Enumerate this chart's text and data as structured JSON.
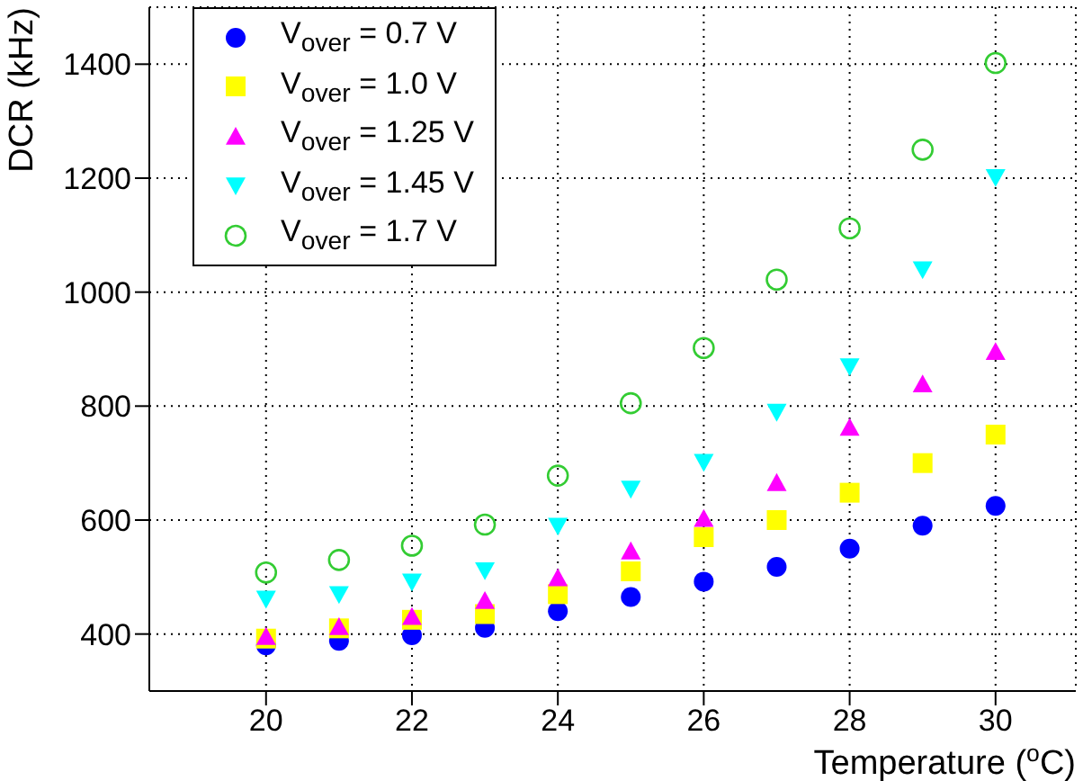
{
  "chart_data": {
    "type": "scatter",
    "xlabel": "Temperature ($^{o}$C)",
    "ylabel": "DCR (kHz)",
    "x": [
      20,
      21,
      22,
      23,
      24,
      25,
      26,
      27,
      28,
      29,
      30
    ],
    "series": [
      {
        "name": "V$_{over}$ = 0.7 V",
        "color": "#0000ff",
        "marker": "circle",
        "values": [
          380,
          388,
          398,
          411,
          440,
          465,
          492,
          518,
          550,
          590,
          625
        ]
      },
      {
        "name": "V$_{over}$ = 1.0 V",
        "color": "#ffff00",
        "marker": "square",
        "values": [
          392,
          410,
          425,
          435,
          470,
          510,
          570,
          600,
          648,
          700,
          750
        ]
      },
      {
        "name": "V$_{over}$ = 1.25 V",
        "color": "#ff00ff",
        "marker": "triangle",
        "values": [
          395,
          412,
          430,
          458,
          498,
          545,
          602,
          665,
          762,
          838,
          895
        ]
      },
      {
        "name": "V$_{over}$ = 1.45 V",
        "color": "#00ffff",
        "marker": "triangle-down",
        "values": [
          462,
          470,
          492,
          512,
          590,
          655,
          702,
          790,
          870,
          1040,
          1202
        ]
      },
      {
        "name": "V$_{over}$ = 1.7 V",
        "color": "#33cc33",
        "marker": "open-circle",
        "values": [
          508,
          530,
          555,
          592,
          678,
          805,
          902,
          1022,
          1112,
          1250,
          1402
        ]
      }
    ],
    "xlim": [
      18.4,
      31.1
    ],
    "xticks": [
      20,
      22,
      24,
      26,
      28,
      30
    ],
    "ylim": [
      300,
      1500
    ],
    "yticks": [
      400,
      600,
      800,
      1000,
      1200,
      1400
    ],
    "grid": true,
    "legend": "top left"
  }
}
